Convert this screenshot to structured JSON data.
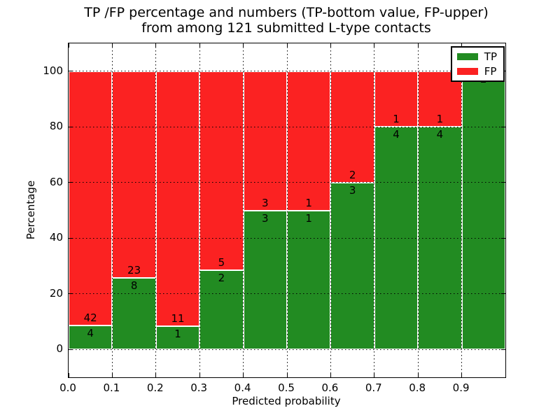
{
  "figure": {
    "title_line1": "TP /FP percentage and numbers (TP-bottom value, FP-upper)",
    "title_line2": "from among 121 submitted L-type contacts"
  },
  "axes": {
    "xlabel": "Predicted probability",
    "ylabel": "Percentage",
    "x_tick_labels": [
      "0.0",
      "0.1",
      "0.2",
      "0.3",
      "0.4",
      "0.5",
      "0.6",
      "0.7",
      "0.8",
      "0.9"
    ],
    "x_tick_values": [
      0.0,
      0.1,
      0.2,
      0.3,
      0.4,
      0.5,
      0.6,
      0.7,
      0.8,
      0.9
    ],
    "y_tick_labels": [
      "0",
      "20",
      "40",
      "60",
      "80",
      "100"
    ],
    "y_tick_values": [
      0,
      20,
      40,
      60,
      80,
      100
    ],
    "xlim": [
      0.0,
      1.0
    ],
    "ylim": [
      -10,
      110
    ],
    "grid_style": "dotted"
  },
  "legend": {
    "position": "upper right",
    "items": [
      {
        "label": "TP",
        "color": "#228b22"
      },
      {
        "label": "FP",
        "color": "#fb2222"
      }
    ]
  },
  "chart_data": {
    "type": "bar",
    "stacked": true,
    "title": "TP /FP percentage and numbers (TP-bottom value, FP-upper) from among 121 submitted L-type contacts",
    "xlabel": "Predicted probability",
    "ylabel": "Percentage",
    "total_contacts": 121,
    "bin_edges": [
      0.0,
      0.1,
      0.2,
      0.3,
      0.4,
      0.5,
      0.6,
      0.7,
      0.8,
      0.9,
      1.0
    ],
    "series": [
      {
        "name": "TP",
        "color": "#228b22",
        "counts": [
          4,
          8,
          1,
          2,
          3,
          1,
          3,
          4,
          4,
          2
        ]
      },
      {
        "name": "FP",
        "color": "#fb2222",
        "counts": [
          42,
          23,
          11,
          5,
          3,
          1,
          2,
          1,
          1,
          0
        ]
      }
    ],
    "tp_percent": [
      8.7,
      25.81,
      8.33,
      28.57,
      50,
      50,
      60,
      80,
      80,
      100
    ],
    "fp_percent": [
      91.3,
      74.19,
      91.67,
      71.43,
      50,
      50,
      40,
      20,
      20,
      0
    ],
    "xlim": [
      0.0,
      1.0
    ],
    "ylim": [
      -10,
      110
    ],
    "legend_position": "upper right",
    "grid": true
  }
}
